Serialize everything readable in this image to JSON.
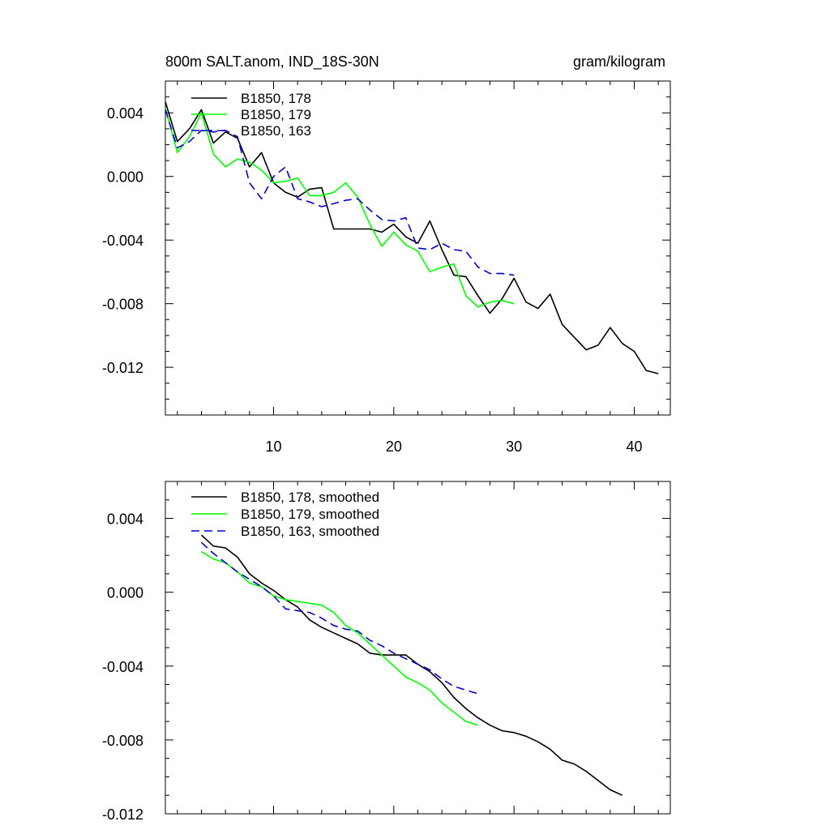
{
  "chart_data": [
    {
      "type": "line",
      "title": "800m SALT.anom, IND_18S-30N",
      "units": "gram/kilogram",
      "xlim": [
        1,
        43
      ],
      "ylim": [
        -0.015,
        0.006
      ],
      "xticks": [
        10,
        20,
        30,
        40
      ],
      "yticks": [
        0.004,
        0.0,
        -0.004,
        -0.008,
        -0.012
      ],
      "ytick_labels": [
        "0.004",
        "0.000",
        "-0.004",
        "-0.008",
        "-0.012"
      ],
      "xtick_labels": [
        "10",
        "20",
        "30",
        "40"
      ],
      "series": [
        {
          "name": "B1850, 178",
          "color": "#000000",
          "dash": "solid",
          "x": [
            1,
            2,
            3,
            4,
            5,
            6,
            7,
            8,
            9,
            10,
            11,
            12,
            13,
            14,
            15,
            16,
            17,
            18,
            19,
            20,
            21,
            22,
            23,
            24,
            25,
            26,
            27,
            28,
            29,
            30,
            31,
            32,
            33,
            34,
            35,
            36,
            37,
            38,
            39,
            40,
            41,
            42
          ],
          "y": [
            0.0047,
            0.0022,
            0.003,
            0.0042,
            0.0021,
            0.0028,
            0.0024,
            0.0006,
            0.0015,
            -0.0004,
            -0.001,
            -0.0013,
            -0.0008,
            -0.0007,
            -0.0033,
            -0.0033,
            -0.0033,
            -0.0033,
            -0.0035,
            -0.003,
            -0.0038,
            -0.0042,
            -0.0028,
            -0.0046,
            -0.0062,
            -0.0063,
            -0.0075,
            -0.0086,
            -0.0077,
            -0.0064,
            -0.0079,
            -0.0083,
            -0.0074,
            -0.0093,
            -0.0101,
            -0.0109,
            -0.0106,
            -0.0095,
            -0.0105,
            -0.011,
            -0.0122,
            -0.0124
          ]
        },
        {
          "name": "B1850, 179",
          "color": "#00ff00",
          "dash": "solid",
          "x": [
            1,
            2,
            3,
            4,
            5,
            6,
            7,
            8,
            9,
            10,
            11,
            12,
            13,
            14,
            15,
            16,
            17,
            18,
            19,
            20,
            21,
            22,
            23,
            24,
            25,
            26,
            27,
            28,
            29,
            30
          ],
          "y": [
            0.0043,
            0.0015,
            0.0025,
            0.004,
            0.0014,
            0.0006,
            0.0011,
            0.0009,
            0.0004,
            -0.0004,
            -0.0003,
            -0.0001,
            -0.0012,
            -0.0012,
            -0.001,
            -0.0004,
            -0.0013,
            -0.003,
            -0.0044,
            -0.0035,
            -0.0043,
            -0.0047,
            -0.006,
            -0.0057,
            -0.0055,
            -0.0075,
            -0.0082,
            -0.0079,
            -0.0078,
            -0.008
          ]
        },
        {
          "name": "B1850, 163",
          "color": "#0000cc",
          "dash": "dashed",
          "x": [
            1,
            2,
            3,
            4,
            5,
            6,
            7,
            8,
            9,
            10,
            11,
            12,
            13,
            14,
            15,
            16,
            17,
            18,
            19,
            20,
            21,
            22,
            23,
            24,
            25,
            26,
            27,
            28,
            29,
            30
          ],
          "y": [
            0.0042,
            0.0018,
            0.0022,
            0.0029,
            0.0028,
            0.0029,
            0.0025,
            -0.0004,
            -0.0014,
            0.0,
            0.0006,
            -0.0014,
            -0.0016,
            -0.0019,
            -0.0017,
            -0.0015,
            -0.0014,
            -0.0021,
            -0.0027,
            -0.0028,
            -0.0026,
            -0.0045,
            -0.0046,
            -0.0042,
            -0.0046,
            -0.0047,
            -0.0057,
            -0.0061,
            -0.0061,
            -0.0062
          ]
        }
      ]
    },
    {
      "type": "line",
      "title": "",
      "xlim": [
        1,
        43
      ],
      "ylim": [
        -0.012,
        0.006
      ],
      "xticks": [
        10,
        20,
        30,
        40
      ],
      "yticks": [
        0.004,
        0.0,
        -0.004,
        -0.008,
        -0.012
      ],
      "ytick_labels": [
        "0.004",
        "0.000",
        "-0.004",
        "-0.008",
        "-0.012"
      ],
      "series": [
        {
          "name": "B1850, 178, smoothed",
          "color": "#000000",
          "dash": "solid",
          "x": [
            4,
            5,
            6,
            7,
            8,
            9,
            10,
            11,
            12,
            13,
            14,
            15,
            16,
            17,
            18,
            19,
            20,
            21,
            22,
            23,
            24,
            25,
            26,
            27,
            28,
            29,
            30,
            31,
            32,
            33,
            34,
            35,
            36,
            37,
            38,
            39
          ],
          "y": [
            0.0031,
            0.0025,
            0.0024,
            0.0019,
            0.001,
            0.0005,
            0.0001,
            -0.0004,
            -0.0008,
            -0.0015,
            -0.0019,
            -0.0022,
            -0.0025,
            -0.0028,
            -0.0033,
            -0.0034,
            -0.0034,
            -0.0034,
            -0.0039,
            -0.0043,
            -0.0049,
            -0.0057,
            -0.0063,
            -0.0068,
            -0.0072,
            -0.0075,
            -0.0076,
            -0.0078,
            -0.0081,
            -0.0085,
            -0.0091,
            -0.0093,
            -0.0097,
            -0.0102,
            -0.0107,
            -0.011
          ]
        },
        {
          "name": "B1850, 179, smoothed",
          "color": "#00ff00",
          "dash": "solid",
          "x": [
            4,
            5,
            6,
            7,
            8,
            9,
            10,
            11,
            12,
            13,
            14,
            15,
            16,
            17,
            18,
            19,
            20,
            21,
            22,
            23,
            24,
            25,
            26,
            27
          ],
          "y": [
            0.0022,
            0.0018,
            0.0016,
            0.0011,
            0.0005,
            0.0003,
            -0.0002,
            -0.0004,
            -0.0005,
            -0.0006,
            -0.0007,
            -0.0011,
            -0.0018,
            -0.0022,
            -0.0028,
            -0.0034,
            -0.004,
            -0.0046,
            -0.0049,
            -0.0053,
            -0.006,
            -0.0065,
            -0.007,
            -0.0072
          ]
        },
        {
          "name": "B1850, 163, smoothed",
          "color": "#0000cc",
          "dash": "dashed",
          "x": [
            4,
            5,
            6,
            7,
            8,
            9,
            10,
            11,
            12,
            13,
            14,
            15,
            16,
            17,
            18,
            19,
            20,
            21,
            22,
            23,
            24,
            25,
            26,
            27
          ],
          "y": [
            0.0027,
            0.0021,
            0.0016,
            0.0011,
            0.0007,
            0.0003,
            -0.0002,
            -0.0009,
            -0.001,
            -0.0011,
            -0.0014,
            -0.0018,
            -0.002,
            -0.0021,
            -0.0026,
            -0.0029,
            -0.0033,
            -0.0036,
            -0.0039,
            -0.0042,
            -0.0047,
            -0.0051,
            -0.0053,
            -0.0055
          ]
        }
      ]
    }
  ]
}
